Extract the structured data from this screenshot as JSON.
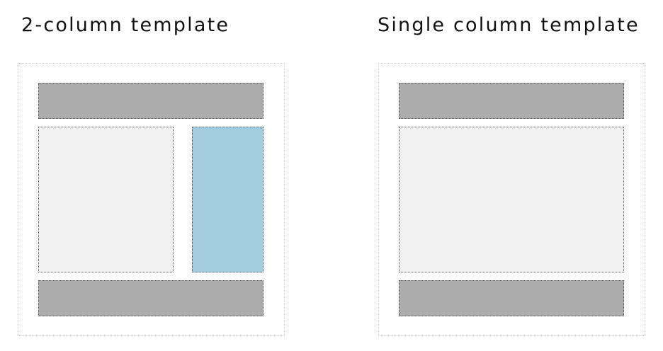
{
  "templates": [
    {
      "title": "2-column template",
      "colors": {
        "header": "#acacac",
        "main": "#f1f1f1",
        "sidebar": "#a2cedf",
        "footer": "#acacac"
      }
    },
    {
      "title": "Single column template",
      "colors": {
        "header": "#acacac",
        "main": "#f1f1f1",
        "footer": "#acacac"
      }
    }
  ]
}
